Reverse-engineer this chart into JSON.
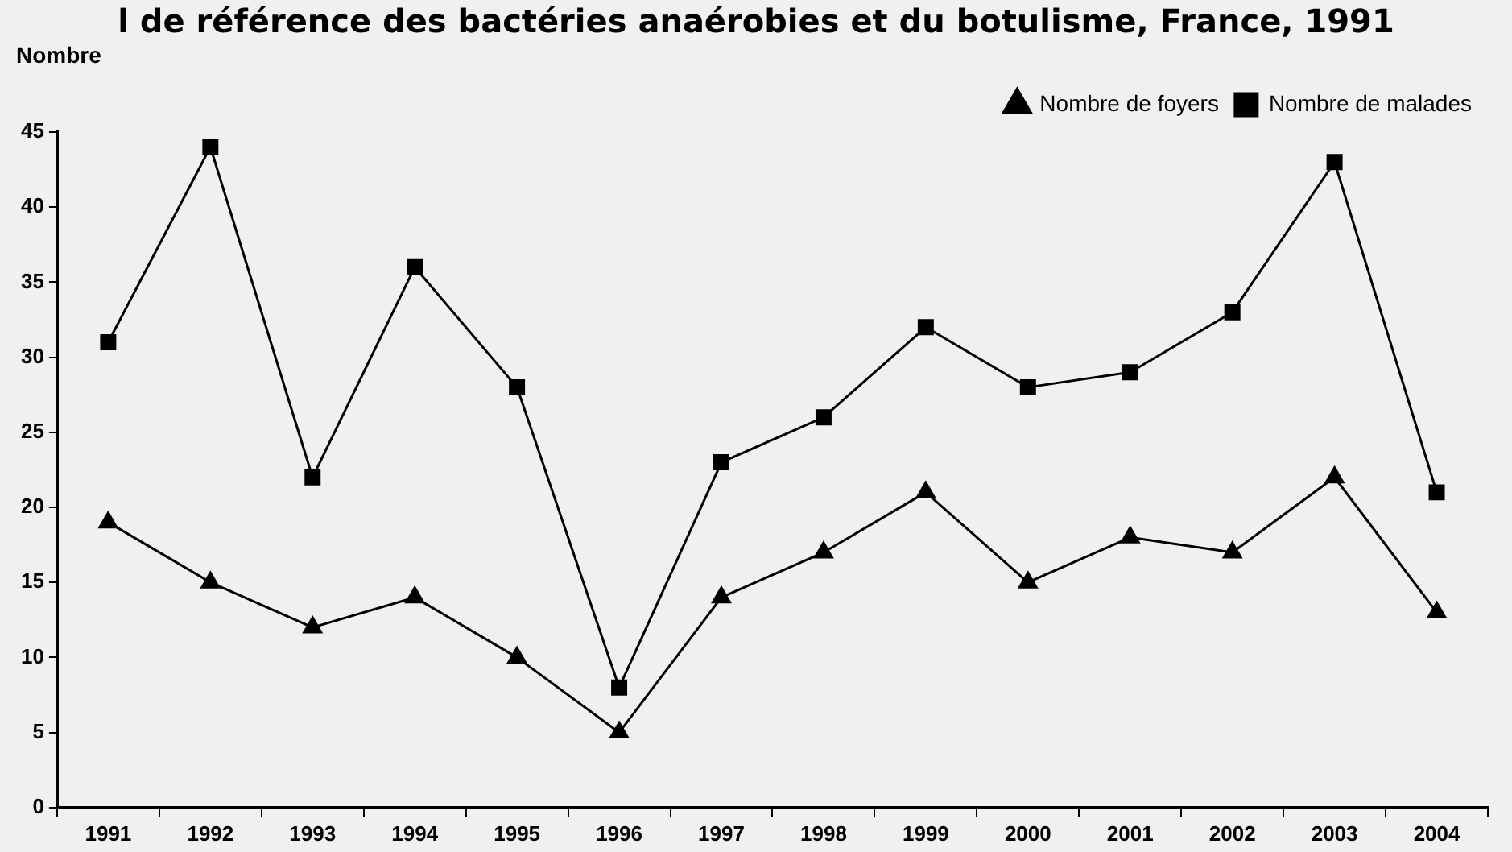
{
  "chart_data": {
    "type": "line",
    "title": "l de référence des bactéries anaérobies et du botulisme, France, 1991",
    "ylabel": "Nombre",
    "categories": [
      "1991",
      "1992",
      "1993",
      "1994",
      "1995",
      "1996",
      "1997",
      "1998",
      "1999",
      "2000",
      "2001",
      "2002",
      "2003",
      "2004"
    ],
    "series": [
      {
        "name": "Nombre de foyers",
        "color": "#000000",
        "marker": "triangle",
        "values": [
          19,
          15,
          12,
          14,
          10,
          5,
          14,
          17,
          21,
          15,
          18,
          17,
          22,
          13
        ]
      },
      {
        "name": "Nombre de malades",
        "color": "#000000",
        "marker": "square",
        "values": [
          31,
          44,
          22,
          36,
          28,
          8,
          23,
          26,
          32,
          28,
          29,
          33,
          43,
          21
        ]
      }
    ],
    "ylim": [
      0,
      45
    ],
    "yticks": [
      0,
      5,
      10,
      15,
      20,
      25,
      30,
      35,
      40,
      45
    ],
    "grid": false,
    "legend": "top right",
    "line_style": "solid"
  }
}
